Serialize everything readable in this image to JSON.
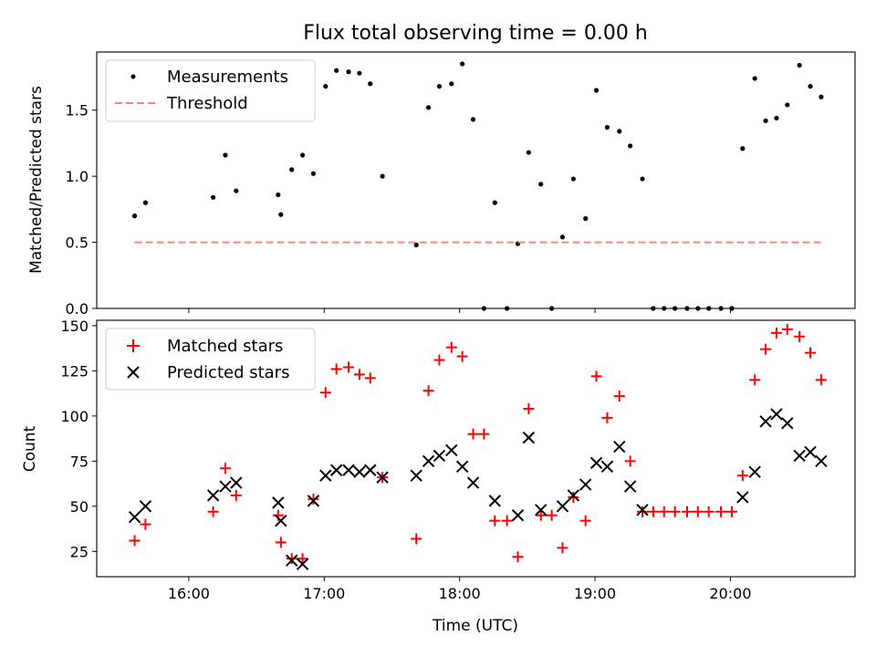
{
  "chart_data": [
    {
      "type": "scatter",
      "title": "Flux total observing time = 0.00 h",
      "xlabel": "",
      "ylabel": "Matched/Predicted stars",
      "xlim_hours": [
        15.32,
        20.92
      ],
      "ylim": [
        0,
        1.94
      ],
      "yticks": [
        0.0,
        0.5,
        1.0,
        1.5
      ],
      "ytick_labels": [
        "0.0",
        "0.5",
        "1.0",
        "1.5"
      ],
      "legend_position": "upper-left",
      "series": [
        {
          "name": "Measurements",
          "color": "#000000",
          "marker": "dot",
          "points": [
            [
              15.6,
              0.7
            ],
            [
              15.68,
              0.8
            ],
            [
              16.18,
              0.84
            ],
            [
              16.27,
              1.16
            ],
            [
              16.35,
              0.89
            ],
            [
              16.66,
              0.86
            ],
            [
              16.68,
              0.71
            ],
            [
              16.76,
              1.05
            ],
            [
              16.84,
              1.16
            ],
            [
              16.92,
              1.02
            ],
            [
              17.01,
              1.68
            ],
            [
              17.09,
              1.8
            ],
            [
              17.18,
              1.79
            ],
            [
              17.26,
              1.78
            ],
            [
              17.34,
              1.7
            ],
            [
              17.43,
              1.0
            ],
            [
              17.68,
              0.48
            ],
            [
              17.77,
              1.52
            ],
            [
              17.85,
              1.68
            ],
            [
              17.94,
              1.7
            ],
            [
              18.02,
              1.85
            ],
            [
              18.1,
              1.43
            ],
            [
              18.18,
              0.0
            ],
            [
              18.26,
              0.8
            ],
            [
              18.35,
              0.0
            ],
            [
              18.43,
              0.49
            ],
            [
              18.51,
              1.18
            ],
            [
              18.6,
              0.94
            ],
            [
              18.68,
              0.0
            ],
            [
              18.76,
              0.54
            ],
            [
              18.84,
              0.98
            ],
            [
              18.93,
              0.68
            ],
            [
              19.01,
              1.65
            ],
            [
              19.09,
              1.37
            ],
            [
              19.18,
              1.34
            ],
            [
              19.26,
              1.23
            ],
            [
              19.35,
              0.98
            ],
            [
              19.43,
              0.0
            ],
            [
              19.51,
              0.0
            ],
            [
              19.59,
              0.0
            ],
            [
              19.68,
              0.0
            ],
            [
              19.76,
              0.0
            ],
            [
              19.84,
              0.0
            ],
            [
              19.93,
              0.0
            ],
            [
              20.01,
              0.0
            ],
            [
              20.09,
              1.21
            ],
            [
              20.18,
              1.74
            ],
            [
              20.26,
              1.42
            ],
            [
              20.34,
              1.44
            ],
            [
              20.42,
              1.54
            ],
            [
              20.51,
              1.84
            ],
            [
              20.59,
              1.68
            ],
            [
              20.67,
              1.6
            ]
          ]
        },
        {
          "name": "Threshold",
          "color": "#ff8080",
          "marker": "dashed-line",
          "points": [
            [
              15.6,
              0.5
            ],
            [
              20.67,
              0.5
            ]
          ]
        }
      ]
    },
    {
      "type": "scatter",
      "title": "",
      "xlabel": "Time (UTC)",
      "ylabel": "Count",
      "xlim_hours": [
        15.32,
        20.92
      ],
      "ylim": [
        11,
        153
      ],
      "xticks_hours": [
        16,
        17,
        18,
        19,
        20
      ],
      "xtick_labels": [
        "16:00",
        "17:00",
        "18:00",
        "19:00",
        "20:00"
      ],
      "yticks": [
        25,
        50,
        75,
        100,
        125,
        150
      ],
      "ytick_labels": [
        "25",
        "50",
        "75",
        "100",
        "125",
        "150"
      ],
      "legend_position": "upper-left",
      "series": [
        {
          "name": "Matched stars",
          "color": "#ff0000",
          "marker": "plus",
          "points": [
            [
              15.6,
              31
            ],
            [
              15.68,
              40
            ],
            [
              16.18,
              47
            ],
            [
              16.27,
              71
            ],
            [
              16.35,
              56
            ],
            [
              16.66,
              45
            ],
            [
              16.68,
              30
            ],
            [
              16.76,
              21
            ],
            [
              16.84,
              21
            ],
            [
              16.92,
              54
            ],
            [
              17.01,
              113
            ],
            [
              17.09,
              126
            ],
            [
              17.18,
              127
            ],
            [
              17.26,
              123
            ],
            [
              17.34,
              121
            ],
            [
              17.43,
              66
            ],
            [
              17.68,
              32
            ],
            [
              17.77,
              114
            ],
            [
              17.85,
              131
            ],
            [
              17.94,
              138
            ],
            [
              18.02,
              133
            ],
            [
              18.1,
              90
            ],
            [
              18.18,
              90
            ],
            [
              18.26,
              42
            ],
            [
              18.35,
              42
            ],
            [
              18.43,
              22
            ],
            [
              18.51,
              104
            ],
            [
              18.6,
              45
            ],
            [
              18.68,
              45
            ],
            [
              18.76,
              27
            ],
            [
              18.84,
              55
            ],
            [
              18.93,
              42
            ],
            [
              19.01,
              122
            ],
            [
              19.09,
              99
            ],
            [
              19.18,
              111
            ],
            [
              19.26,
              75
            ],
            [
              19.35,
              47
            ],
            [
              19.43,
              47
            ],
            [
              19.51,
              47
            ],
            [
              19.59,
              47
            ],
            [
              19.68,
              47
            ],
            [
              19.76,
              47
            ],
            [
              19.84,
              47
            ],
            [
              19.93,
              47
            ],
            [
              20.01,
              47
            ],
            [
              20.09,
              67
            ],
            [
              20.18,
              120
            ],
            [
              20.26,
              137
            ],
            [
              20.34,
              146
            ],
            [
              20.42,
              148
            ],
            [
              20.51,
              144
            ],
            [
              20.59,
              135
            ],
            [
              20.67,
              120
            ]
          ]
        },
        {
          "name": "Predicted stars",
          "color": "#000000",
          "marker": "x",
          "points": [
            [
              15.6,
              44
            ],
            [
              15.68,
              50
            ],
            [
              16.18,
              56
            ],
            [
              16.27,
              61
            ],
            [
              16.35,
              63
            ],
            [
              16.66,
              52
            ],
            [
              16.68,
              42
            ],
            [
              16.76,
              20
            ],
            [
              16.84,
              18
            ],
            [
              16.92,
              53
            ],
            [
              17.01,
              67
            ],
            [
              17.09,
              70
            ],
            [
              17.18,
              70
            ],
            [
              17.26,
              69
            ],
            [
              17.34,
              70
            ],
            [
              17.43,
              66
            ],
            [
              17.68,
              67
            ],
            [
              17.77,
              75
            ],
            [
              17.85,
              78
            ],
            [
              17.94,
              81
            ],
            [
              18.02,
              72
            ],
            [
              18.1,
              63
            ],
            [
              18.26,
              53
            ],
            [
              18.43,
              45
            ],
            [
              18.51,
              88
            ],
            [
              18.6,
              48
            ],
            [
              18.76,
              50
            ],
            [
              18.84,
              56
            ],
            [
              18.93,
              62
            ],
            [
              19.01,
              74
            ],
            [
              19.09,
              72
            ],
            [
              19.18,
              83
            ],
            [
              19.26,
              61
            ],
            [
              19.35,
              48
            ],
            [
              20.09,
              55
            ],
            [
              20.18,
              69
            ],
            [
              20.26,
              97
            ],
            [
              20.34,
              101
            ],
            [
              20.42,
              96
            ],
            [
              20.51,
              78
            ],
            [
              20.59,
              80
            ],
            [
              20.67,
              75
            ]
          ]
        }
      ]
    }
  ]
}
